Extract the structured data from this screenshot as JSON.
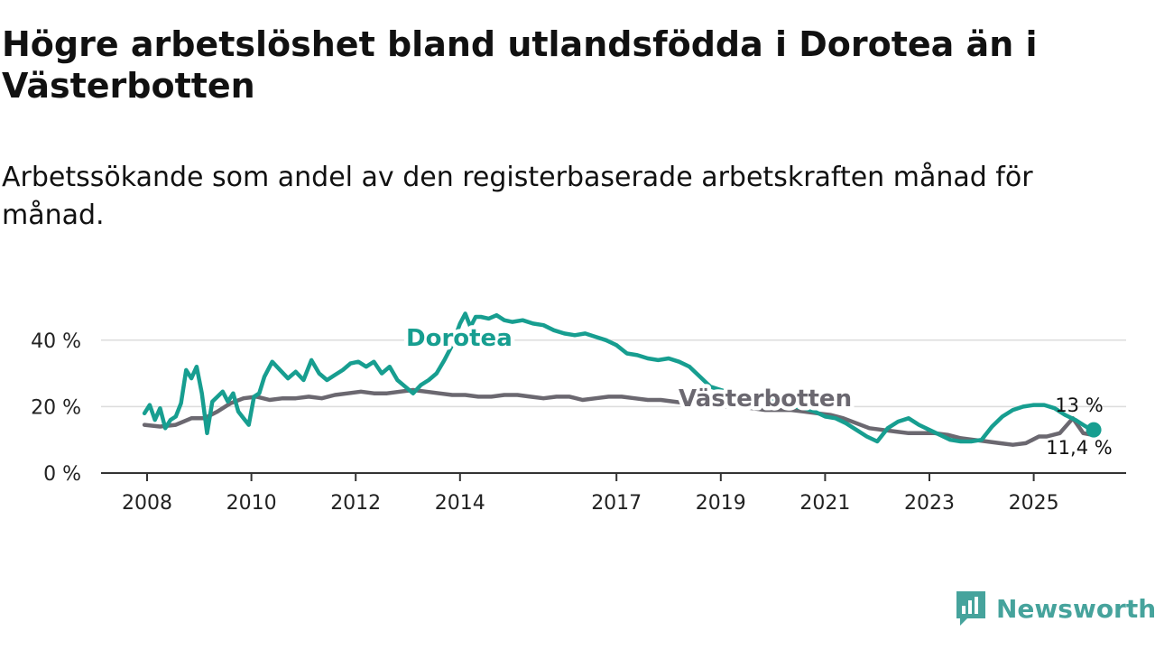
{
  "chart_data": {
    "type": "line",
    "title": "Högre arbetslöshet bland utlandsfödda i Dorotea än i Västerbotten",
    "subtitle": "Arbetssökande som andel av den registerbaserade arbetskraften månad för månad.",
    "xlabel": "",
    "ylabel": "",
    "xlim": [
      2008.0,
      2026.8
    ],
    "ylim": [
      0,
      50
    ],
    "y_ticks": [
      {
        "value": 0,
        "label": "0 %"
      },
      {
        "value": 20,
        "label": "20 %"
      },
      {
        "value": 40,
        "label": "40 %"
      }
    ],
    "x_ticks": [
      {
        "value": 2008,
        "label": "2008"
      },
      {
        "value": 2010,
        "label": "2010"
      },
      {
        "value": 2012,
        "label": "2012"
      },
      {
        "value": 2014,
        "label": "2014"
      },
      {
        "value": 2017,
        "label": "2017"
      },
      {
        "value": 2019,
        "label": "2019"
      },
      {
        "value": 2021,
        "label": "2021"
      },
      {
        "value": 2023,
        "label": "2023"
      },
      {
        "value": 2025,
        "label": "2025"
      }
    ],
    "series": [
      {
        "name": "Västerbotten",
        "label": "Västerbotten",
        "color": "#6b6870",
        "end_label": "11,4 %",
        "x": [
          2007.95,
          2008.25,
          2008.55,
          2008.85,
          2009.1,
          2009.35,
          2009.6,
          2009.85,
          2010.1,
          2010.35,
          2010.6,
          2010.85,
          2011.1,
          2011.35,
          2011.6,
          2011.85,
          2012.1,
          2012.35,
          2012.6,
          2012.85,
          2013.1,
          2013.35,
          2013.6,
          2013.85,
          2014.1,
          2014.35,
          2014.6,
          2014.85,
          2015.1,
          2015.35,
          2015.6,
          2015.85,
          2016.1,
          2016.35,
          2016.6,
          2016.85,
          2017.1,
          2017.35,
          2017.6,
          2017.85,
          2018.1,
          2018.35,
          2018.6,
          2018.85,
          2019.1,
          2019.35,
          2019.6,
          2019.85,
          2020.1,
          2020.35,
          2020.6,
          2020.85,
          2021.1,
          2021.35,
          2021.6,
          2021.85,
          2022.1,
          2022.35,
          2022.6,
          2022.85,
          2023.1,
          2023.35,
          2023.6,
          2023.85,
          2024.1,
          2024.35,
          2024.6,
          2024.85,
          2025.1,
          2025.25,
          2025.5,
          2025.75,
          2025.95,
          2026.15
        ],
        "values": [
          14.5,
          14.0,
          14.5,
          16.5,
          16.5,
          18.5,
          21.0,
          22.5,
          23.0,
          22.0,
          22.5,
          22.5,
          23.0,
          22.5,
          23.5,
          24.0,
          24.5,
          24.0,
          24.0,
          24.5,
          25.0,
          24.5,
          24.0,
          23.5,
          23.5,
          23.0,
          23.0,
          23.5,
          23.5,
          23.0,
          22.5,
          23.0,
          23.0,
          22.0,
          22.5,
          23.0,
          23.0,
          22.5,
          22.0,
          22.0,
          21.5,
          21.0,
          20.5,
          20.5,
          20.0,
          20.0,
          19.5,
          19.0,
          19.0,
          19.0,
          18.5,
          18.0,
          17.5,
          16.5,
          15.0,
          13.5,
          13.0,
          12.5,
          12.0,
          12.0,
          12.0,
          11.5,
          10.5,
          10.0,
          9.5,
          9.0,
          8.5,
          9.0,
          11.0,
          11.0,
          12.0,
          16.5,
          12.0,
          11.4
        ]
      },
      {
        "name": "Dorotea",
        "label": "Dorotea",
        "color": "#179e90",
        "end_label": "13 %",
        "x": [
          2007.95,
          2008.05,
          2008.15,
          2008.25,
          2008.35,
          2008.45,
          2008.55,
          2008.65,
          2008.75,
          2008.85,
          2008.95,
          2009.05,
          2009.15,
          2009.25,
          2009.35,
          2009.45,
          2009.55,
          2009.65,
          2009.75,
          2009.85,
          2009.95,
          2010.05,
          2010.15,
          2010.25,
          2010.4,
          2010.55,
          2010.7,
          2010.85,
          2011.0,
          2011.15,
          2011.3,
          2011.45,
          2011.6,
          2011.75,
          2011.9,
          2012.05,
          2012.2,
          2012.35,
          2012.5,
          2012.65,
          2012.8,
          2012.95,
          2013.1,
          2013.25,
          2013.4,
          2013.55,
          2013.7,
          2013.85,
          2014.0,
          2014.1,
          2014.2,
          2014.3,
          2014.4,
          2014.55,
          2014.7,
          2014.85,
          2015.0,
          2015.2,
          2015.4,
          2015.6,
          2015.8,
          2016.0,
          2016.2,
          2016.4,
          2016.6,
          2016.8,
          2017.0,
          2017.2,
          2017.4,
          2017.6,
          2017.8,
          2018.0,
          2018.2,
          2018.4,
          2018.6,
          2018.8,
          2019.0,
          2019.2,
          2019.4,
          2019.6,
          2019.8,
          2020.0,
          2020.2,
          2020.4,
          2020.6,
          2020.8,
          2021.0,
          2021.2,
          2021.4,
          2021.6,
          2021.8,
          2022.0,
          2022.2,
          2022.4,
          2022.6,
          2022.8,
          2023.0,
          2023.2,
          2023.4,
          2023.6,
          2023.8,
          2024.0,
          2024.2,
          2024.4,
          2024.6,
          2024.8,
          2025.0,
          2025.2,
          2025.4,
          2025.6,
          2025.8,
          2026.0,
          2026.15
        ],
        "values": [
          18.0,
          20.5,
          16.0,
          19.5,
          13.5,
          16.0,
          17.0,
          21.0,
          31.0,
          28.5,
          32.0,
          24.0,
          12.0,
          21.5,
          23.0,
          24.5,
          21.5,
          24.0,
          18.5,
          16.5,
          14.5,
          23.0,
          24.0,
          29.0,
          33.5,
          31.0,
          28.5,
          30.5,
          28.0,
          34.0,
          30.0,
          28.0,
          29.5,
          31.0,
          33.0,
          33.5,
          32.0,
          33.5,
          30.0,
          32.0,
          28.0,
          26.0,
          24.0,
          26.5,
          28.0,
          30.0,
          34.0,
          38.5,
          45.0,
          48.0,
          44.0,
          47.0,
          47.0,
          46.5,
          47.5,
          46.0,
          45.5,
          46.0,
          45.0,
          44.5,
          43.0,
          42.0,
          41.5,
          42.0,
          41.0,
          40.0,
          38.5,
          36.0,
          35.5,
          34.5,
          34.0,
          34.5,
          33.5,
          32.0,
          29.0,
          26.0,
          25.0,
          24.0,
          23.0,
          22.5,
          22.0,
          21.5,
          21.0,
          20.0,
          19.5,
          18.5,
          17.0,
          16.5,
          15.0,
          13.0,
          11.0,
          9.5,
          13.5,
          15.5,
          16.5,
          14.5,
          13.0,
          11.5,
          10.0,
          9.5,
          9.5,
          10.0,
          14.0,
          17.0,
          19.0,
          20.0,
          20.5,
          20.5,
          19.5,
          17.5,
          16.0,
          14.0,
          13.0
        ]
      }
    ]
  },
  "branding": {
    "name": "Newsworthy",
    "accent": "#46a39c"
  }
}
